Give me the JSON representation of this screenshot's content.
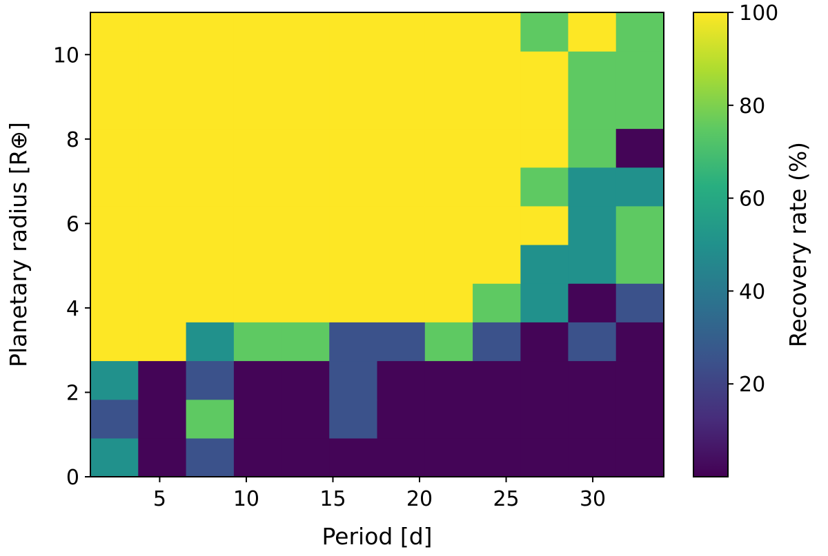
{
  "chart_data": {
    "type": "heatmap",
    "title": "",
    "xlabel": "Period [d]",
    "ylabel": "Planetary radius [R⊕]",
    "colorbar_label": "Recovery rate (%)",
    "colormap": "viridis",
    "xlim": [
      1.0,
      34.1
    ],
    "ylim": [
      0.0,
      11.0
    ],
    "x_ticks": [
      5,
      10,
      15,
      20,
      25,
      30
    ],
    "y_ticks": [
      0,
      2,
      4,
      6,
      8,
      10
    ],
    "colorbar_range": [
      0,
      100
    ],
    "colorbar_ticks": [
      20,
      40,
      60,
      80,
      100
    ],
    "x_edges": [
      1.0,
      3.76,
      6.52,
      9.28,
      12.03,
      14.79,
      17.55,
      20.31,
      23.07,
      25.83,
      28.58,
      31.34,
      34.1
    ],
    "y_edges": [
      0.0,
      0.917,
      1.833,
      2.75,
      3.667,
      4.583,
      5.5,
      6.417,
      7.333,
      8.25,
      9.167,
      10.083,
      11.0
    ],
    "recovery_rate": [
      [
        50,
        1,
        25,
        1,
        1,
        1,
        1,
        1,
        1,
        1,
        1,
        1
      ],
      [
        25,
        1,
        75,
        1,
        1,
        25,
        1,
        1,
        1,
        1,
        1,
        1
      ],
      [
        50,
        1,
        25,
        1,
        1,
        25,
        1,
        1,
        1,
        1,
        1,
        1
      ],
      [
        100,
        100,
        50,
        75,
        75,
        25,
        25,
        75,
        25,
        1,
        25,
        1
      ],
      [
        100,
        100,
        100,
        100,
        100,
        100,
        100,
        100,
        75,
        50,
        1,
        25
      ],
      [
        100,
        100,
        100,
        100,
        100,
        100,
        100,
        100,
        100,
        50,
        50,
        75
      ],
      [
        100,
        100,
        100,
        100,
        100,
        100,
        100,
        100,
        100,
        100,
        50,
        75
      ],
      [
        100,
        100,
        100,
        100,
        100,
        100,
        100,
        100,
        100,
        75,
        50,
        50
      ],
      [
        100,
        100,
        100,
        100,
        100,
        100,
        100,
        100,
        100,
        100,
        75,
        1
      ],
      [
        100,
        100,
        100,
        100,
        100,
        100,
        100,
        100,
        100,
        100,
        75,
        75
      ],
      [
        100,
        100,
        100,
        100,
        100,
        100,
        100,
        100,
        100,
        100,
        75,
        75
      ],
      [
        100,
        100,
        100,
        100,
        100,
        100,
        100,
        100,
        100,
        75,
        100,
        75
      ]
    ]
  }
}
